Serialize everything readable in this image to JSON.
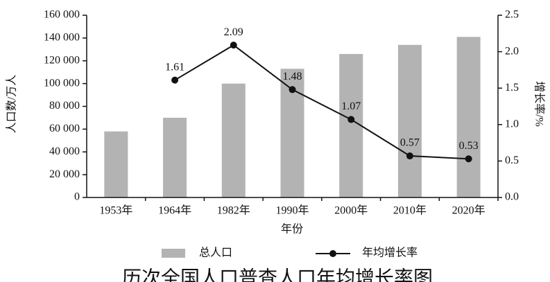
{
  "chart_data": {
    "type": "bar_line",
    "title": "历次全国人口普查人口年均增长率图",
    "x_label": "年份",
    "y_label": "人口数/万人",
    "y2_label": "增长率/%",
    "categories": [
      "1953年",
      "1964年",
      "1982年",
      "1990年",
      "2000年",
      "2010年",
      "2020年"
    ],
    "series": [
      {
        "name": "总人口",
        "type": "bar",
        "color": "#b3b3b3",
        "values": [
          58000,
          70000,
          100000,
          113000,
          126000,
          134000,
          141000
        ]
      },
      {
        "name": "年均增长率",
        "type": "line",
        "axis": "y2",
        "color": "#111111",
        "values": [
          null,
          1.61,
          2.09,
          1.48,
          1.07,
          0.57,
          0.53
        ]
      }
    ],
    "ylim": [
      0,
      160000
    ],
    "yticks": [
      0,
      {
        "value": 20000,
        "label": "20 000"
      },
      {
        "value": 40000,
        "label": "40 000"
      },
      {
        "value": 60000,
        "label": "60 000"
      },
      {
        "value": 80000,
        "label": "80 000"
      },
      {
        "value": 100000,
        "label": "100 000"
      },
      {
        "value": 120000,
        "label": "120 000"
      },
      {
        "value": 140000,
        "label": "140 000"
      },
      {
        "value": 160000,
        "label": "160 000"
      }
    ],
    "y2lim": [
      0,
      2.5
    ],
    "y2ticks": [
      {
        "value": 0,
        "label": "0.0"
      },
      0.5,
      {
        "value": 1,
        "label": "1.0"
      },
      1.5,
      {
        "value": 2,
        "label": "2.0"
      },
      2.5
    ],
    "legend": "bottom"
  }
}
